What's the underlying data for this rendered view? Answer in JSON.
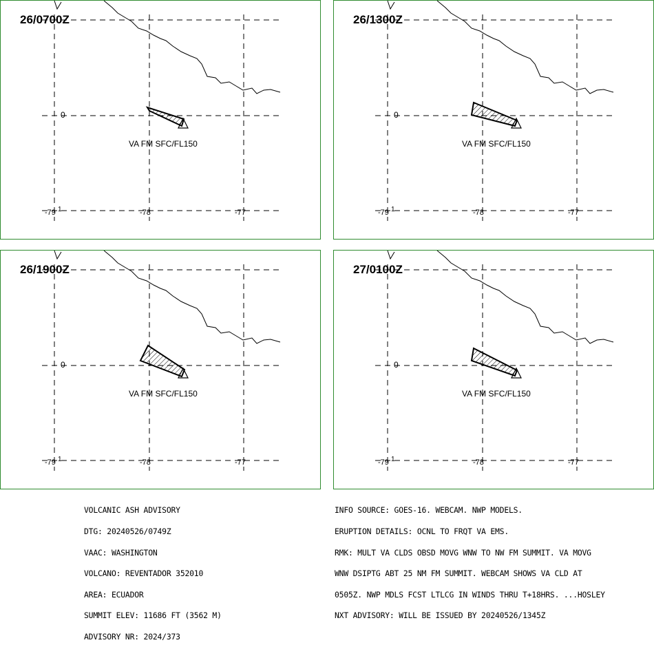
{
  "panels": [
    {
      "time": "26/0700Z",
      "va_label": "VA FM SFC/FL150",
      "lat_label": "0",
      "lon_labels": [
        "-79",
        "-78",
        "-77"
      ],
      "small_mark": "1"
    },
    {
      "time": "26/1300Z",
      "va_label": "VA FM SFC/FL150",
      "lat_label": "0",
      "lon_labels": [
        "-79",
        "-78",
        "-77"
      ],
      "small_mark": "1"
    },
    {
      "time": "26/1900Z",
      "va_label": "VA FM SFC/FL150",
      "lat_label": "0",
      "lon_labels": [
        "-79",
        "-78",
        "-77"
      ],
      "small_mark": "1"
    },
    {
      "time": "27/0100Z",
      "va_label": "VA FM SFC/FL150",
      "lat_label": "0",
      "lon_labels": [
        "-79",
        "-78",
        "-77"
      ],
      "small_mark": "1"
    }
  ],
  "advisory_left": [
    "VOLCANIC ASH ADVISORY",
    "DTG: 20240526/0749Z",
    "VAAC: WASHINGTON",
    "VOLCANO: REVENTADOR 352010",
    "AREA: ECUADOR",
    "SUMMIT ELEV: 11686 FT (3562 M)",
    "ADVISORY NR: 2024/373"
  ],
  "advisory_right": [
    "INFO SOURCE: GOES-16. WEBCAM. NWP MODELS.",
    "ERUPTION DETAILS: OCNL TO FRQT VA EMS.",
    "RMK: MULT VA CLDS OBSD MOVG WNW TO NW FM SUMMIT. VA MOVG",
    "WNW DSIPTG ABT 25 NM FM SUMMIT. WEBCAM SHOWS VA CLD AT",
    "0505Z. NWP MDLS FCST LTLCG IN WINDS THRU T+18HRS. ...HOSLEY",
    "NXT ADVISORY: WILL BE ISSUED BY 20240526/1345Z"
  ],
  "colors": {
    "panel_border": "#2e8b2e",
    "lines": "#000000",
    "background": "#ffffff"
  }
}
